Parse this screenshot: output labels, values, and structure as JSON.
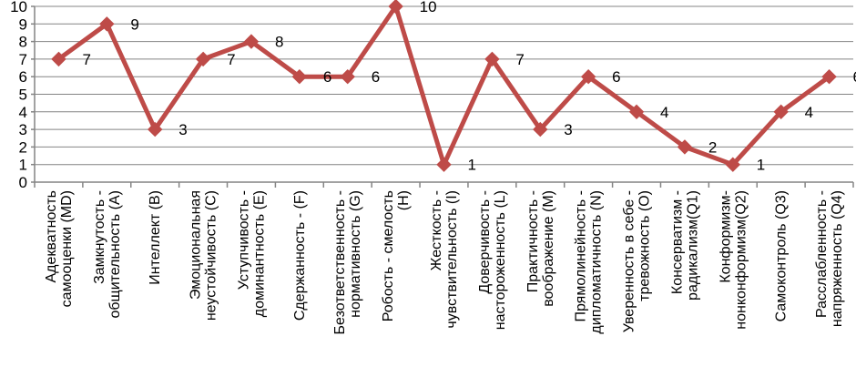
{
  "chart_data": {
    "type": "line",
    "title": "",
    "xlabel": "",
    "ylabel": "",
    "legend": "none",
    "grid": true,
    "ylim": [
      0,
      10
    ],
    "ytick_step": 1,
    "yticks": [
      0,
      1,
      2,
      3,
      4,
      5,
      6,
      7,
      8,
      9,
      10
    ],
    "show_data_labels": true,
    "marker": "diamond",
    "categories": [
      "Адекватность\nсамооценки (MD)",
      "Замкнутость -\nобщительность (A)",
      "Интеллект (B)",
      "Эмоциональная\nнеустойчивость (C)",
      "Уступчивость -\nдоминантность (E)",
      "Сдержанность - (F)",
      "Безответственность -\nнормативность (G)",
      "Робость - смелость\n(H)",
      "Жесткость -\nчувствительность (I)",
      "Доверчивость -\nнастороженность (L)",
      "Практичность -\nвоображение (M)",
      "Прямолинейность -\nдипломатичность (N)",
      "Уверенность в себе -\nтревожность (O)",
      "Консерватизм -\nрадикализм(Q1)",
      "Конформизм-\nнонконформизм(Q2)",
      "Самоконтроль (Q3)",
      "Расслабленность -\nнапряженность (Q4)"
    ],
    "values": [
      7,
      9,
      3,
      7,
      8,
      6,
      6,
      10,
      1,
      7,
      3,
      6,
      4,
      2,
      1,
      4,
      6
    ],
    "colors": {
      "series": "#BE4B48",
      "grid": "#848484",
      "axis": "#848484",
      "text": "#000000",
      "background": "#FFFFFF"
    }
  }
}
